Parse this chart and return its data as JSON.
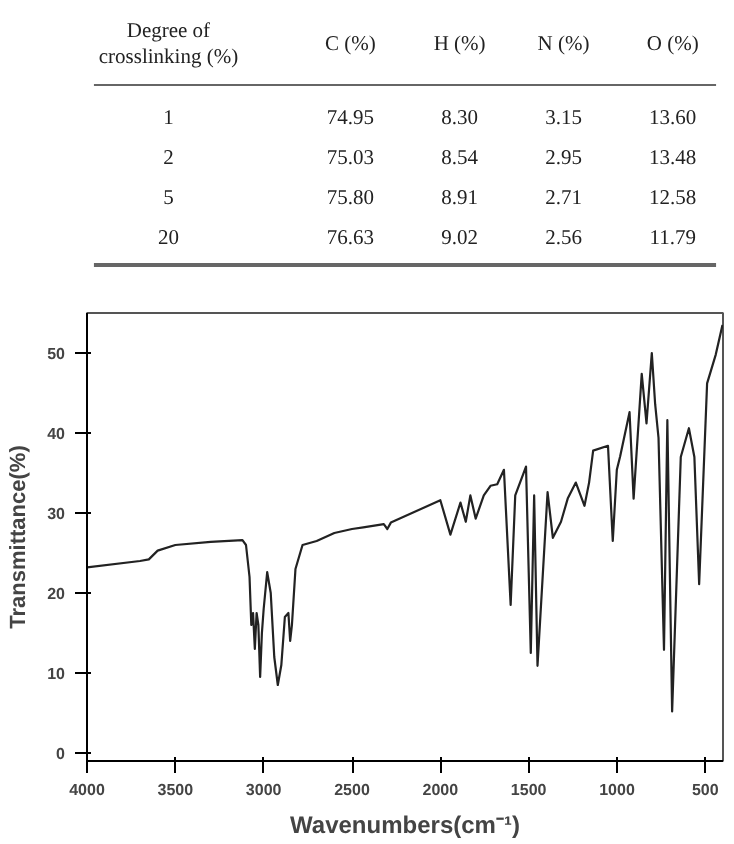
{
  "chart_data": [
    {
      "type": "other",
      "annotations": [
        "Degree of crosslinking (%)",
        "C (%)",
        "H (%)",
        "N (%)",
        "O (%)",
        "1",
        "74.95",
        "8.30",
        "3.15",
        "13.60",
        "2",
        "75.03",
        "8.54",
        "2.95",
        "13.48",
        "5",
        "75.80",
        "8.91",
        "2.71",
        "12.58",
        "20",
        "76.63",
        "9.02",
        "2.56",
        "11.79"
      ]
    },
    {
      "type": "line",
      "xlabel": "Wavenumbers(cm⁻¹)",
      "ylabel": "Transmittance(%)",
      "xlim": [
        4000,
        400
      ],
      "ylim": [
        -1,
        55
      ],
      "xticks": [
        4000,
        3500,
        3000,
        2500,
        2000,
        1500,
        1000,
        500
      ],
      "yticks": [
        0,
        10,
        20,
        30,
        40,
        50
      ],
      "grid": false,
      "x": [
        4000,
        3700,
        3650,
        3600,
        3500,
        3300,
        3120,
        3100,
        3080,
        3070,
        3060,
        3050,
        3040,
        3030,
        3020,
        3010,
        3000,
        2980,
        2960,
        2940,
        2920,
        2900,
        2880,
        2860,
        2850,
        2840,
        2820,
        2780,
        2700,
        2600,
        2500,
        2436,
        2320,
        2300,
        2280,
        2000,
        1943,
        1886,
        1856,
        1830,
        1800,
        1754,
        1716,
        1678,
        1640,
        1602,
        1576,
        1515,
        1488,
        1469,
        1450,
        1393,
        1363,
        1317,
        1279,
        1233,
        1184,
        1158,
        1135,
        1051,
        1024,
        1001,
        982,
        929,
        906,
        860,
        833,
        803,
        784,
        765,
        734,
        715,
        688,
        639,
        593,
        562,
        535,
        490,
        441,
        403
      ],
      "series": [
        {
          "color": "#222222",
          "values": [
            23.2,
            24.0,
            24.2,
            25.3,
            26.0,
            26.4,
            26.6,
            26.0,
            22,
            16,
            17.5,
            13,
            17.5,
            16,
            9.5,
            15,
            18,
            22.6,
            20,
            12,
            8.5,
            11,
            17,
            17.5,
            14,
            16,
            23,
            26,
            26.5,
            27.5,
            28.0,
            28.2,
            28.6,
            28.0,
            28.8,
            31.6,
            27.3,
            31.3,
            28.9,
            32.2,
            29.3,
            32.2,
            33.4,
            33.6,
            35.4,
            18.5,
            32.2,
            35.8,
            12.5,
            32.2,
            10.9,
            32.6,
            26.9,
            28.9,
            31.8,
            33.8,
            30.9,
            33.8,
            37.8,
            38.4,
            26.5,
            35.4,
            37.1,
            42.6,
            31.8,
            47.4,
            41.2,
            50.0,
            43.6,
            39.4,
            12.9,
            41.6,
            5.2,
            37.0,
            40.6,
            37.0,
            21.1,
            46.2,
            49.8,
            53.5
          ]
        }
      ]
    }
  ]
}
